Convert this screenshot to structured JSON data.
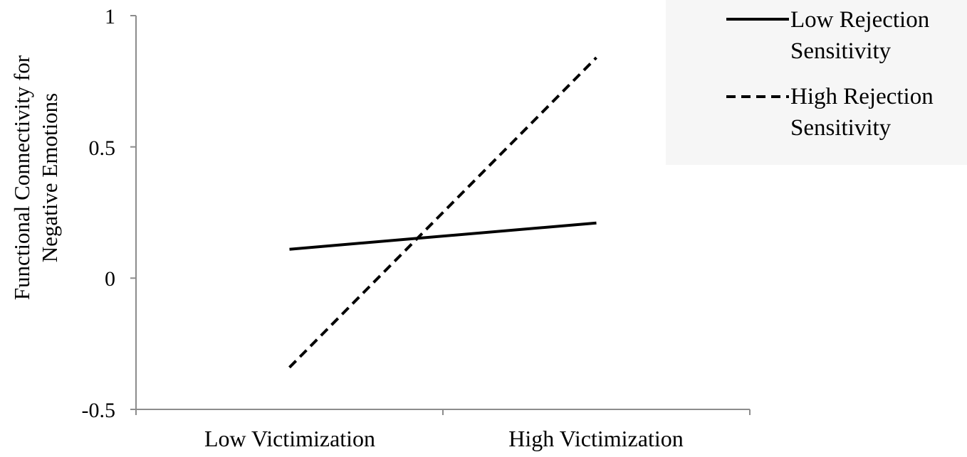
{
  "chart_data": {
    "type": "line",
    "title": "",
    "xlabel": "",
    "ylabel_lines": [
      "Functional Connectivity for",
      "Negative Emotions"
    ],
    "categories": [
      "Low Victimization",
      "High Victimization"
    ],
    "ylim": [
      -0.5,
      1
    ],
    "yticks": [
      "1",
      "0.5",
      "0",
      "-0.5"
    ],
    "grid": false,
    "legend_position": "top-right",
    "series": [
      {
        "name_lines": [
          "Low Rejection",
          "Sensitivity"
        ],
        "values": [
          0.11,
          0.21
        ],
        "style": "solid",
        "color": "#000000"
      },
      {
        "name_lines": [
          "High Rejection",
          "Sensitivity"
        ],
        "values": [
          -0.34,
          0.84
        ],
        "style": "dashed",
        "color": "#000000"
      }
    ]
  }
}
